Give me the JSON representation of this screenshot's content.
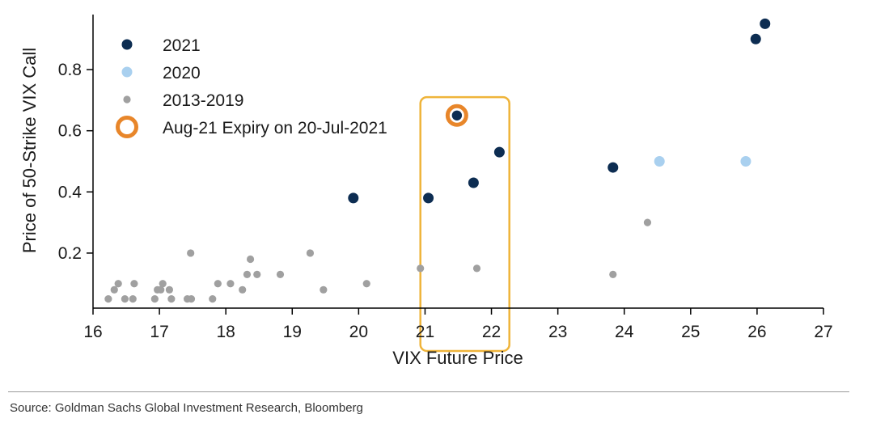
{
  "chart_data": {
    "type": "scatter",
    "xlabel": "VIX Future Price",
    "ylabel": "Price of 50-Strike VIX Call",
    "xlim": [
      16,
      27
    ],
    "ylim": [
      0.02,
      0.98
    ],
    "xticks": [
      "16",
      "17",
      "18",
      "19",
      "20",
      "21",
      "22",
      "23",
      "24",
      "25",
      "26",
      "27"
    ],
    "yticks": [
      "0.2",
      "0.4",
      "0.6",
      "0.8"
    ],
    "legend_position": "top-left",
    "grid": false,
    "series": [
      {
        "name": "2021",
        "color": "#0d2d52",
        "marker": "large-dot",
        "points": [
          [
            19.92,
            0.38
          ],
          [
            21.05,
            0.38
          ],
          [
            21.73,
            0.43
          ],
          [
            22.12,
            0.53
          ],
          [
            23.83,
            0.48
          ],
          [
            25.98,
            0.9
          ],
          [
            26.12,
            0.95
          ]
        ]
      },
      {
        "name": "2020",
        "color": "#a9d0ef",
        "marker": "large-dot",
        "points": [
          [
            24.53,
            0.5
          ],
          [
            25.83,
            0.5
          ]
        ]
      },
      {
        "name": "2013-2019",
        "color": "#a0a0a0",
        "marker": "small-dot",
        "points": [
          [
            16.23,
            0.05
          ],
          [
            16.32,
            0.08
          ],
          [
            16.38,
            0.1
          ],
          [
            16.48,
            0.05
          ],
          [
            16.6,
            0.05
          ],
          [
            16.62,
            0.1
          ],
          [
            16.93,
            0.05
          ],
          [
            16.97,
            0.08
          ],
          [
            17.02,
            0.08
          ],
          [
            17.05,
            0.1
          ],
          [
            17.15,
            0.08
          ],
          [
            17.18,
            0.05
          ],
          [
            17.42,
            0.05
          ],
          [
            17.48,
            0.05
          ],
          [
            17.47,
            0.2
          ],
          [
            17.8,
            0.05
          ],
          [
            17.88,
            0.1
          ],
          [
            18.07,
            0.1
          ],
          [
            18.25,
            0.08
          ],
          [
            18.32,
            0.13
          ],
          [
            18.37,
            0.18
          ],
          [
            18.47,
            0.13
          ],
          [
            18.82,
            0.13
          ],
          [
            19.27,
            0.2
          ],
          [
            19.47,
            0.08
          ],
          [
            20.12,
            0.1
          ],
          [
            20.93,
            0.15
          ],
          [
            21.78,
            0.15
          ],
          [
            23.83,
            0.13
          ],
          [
            24.35,
            0.3
          ]
        ]
      },
      {
        "name": "Aug-21 Expiry on 20-Jul-2021",
        "color": "#e8862a",
        "center_color": "#0d2d52",
        "marker": "ring",
        "points": [
          [
            21.48,
            0.65
          ]
        ]
      }
    ],
    "highlight_box": {
      "color": "#efb43a",
      "x_range": [
        20.93,
        22.27
      ],
      "y_range": [
        -0.12,
        0.71
      ]
    }
  },
  "footer": {
    "source": "Source: Goldman Sachs Global Investment Research, Bloomberg"
  }
}
